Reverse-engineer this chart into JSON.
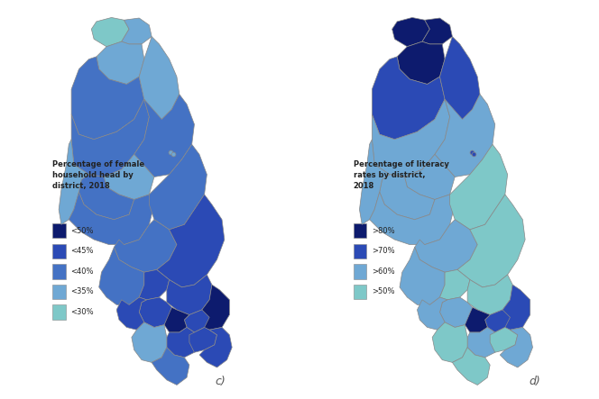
{
  "title_left": "Percentage of female\nhousehold head by\ndistrict, 2018",
  "title_right": "Percentage of literacy\nrates by district,\n2018",
  "label_c": "c)",
  "label_d": "d)",
  "legend_left": {
    "labels": [
      "<50%",
      "<45%",
      "<40%",
      "<35%",
      "<30%"
    ],
    "colors": [
      "#0d1b6e",
      "#2b4ab5",
      "#4472c4",
      "#6fa8d4",
      "#7ec8c8"
    ]
  },
  "legend_right": {
    "labels": [
      ">80%",
      ">70%",
      ">60%",
      ">50%"
    ],
    "colors": [
      "#0d1b6e",
      "#2b4ab5",
      "#6fa8d4",
      "#7ec8c8"
    ]
  },
  "female_head_colors": {
    "Chitipa": "#7ec8c8",
    "Karonga": "#6fa8d4",
    "Nkhata Bay": "#6fa8d4",
    "Rumphi": "#6fa8d4",
    "Mzimba": "#4472c4",
    "Likoma": "#6fa8d4",
    "Kasungu": "#4472c4",
    "Nkhotakota": "#4472c4",
    "Ntchisi": "#6fa8d4",
    "Dowa": "#4472c4",
    "Mchinji": "#6fa8d4",
    "Lilongwe": "#4472c4",
    "Dedza": "#4472c4",
    "Ntcheu": "#4472c4",
    "Salima": "#4472c4",
    "Mangochi": "#2b4ab5",
    "Machinga": "#2b4ab5",
    "Zomba": "#0d1b6e",
    "Chiradzulu": "#2b4ab5",
    "Blantyre": "#0d1b6e",
    "Mwanza": "#2b4ab5",
    "Thyolo": "#2b4ab5",
    "Mulanje": "#2b4ab5",
    "Phalombe": "#2b4ab5",
    "Chikwawa": "#6fa8d4",
    "Nsanje": "#4472c4",
    "Balaka": "#2b4ab5",
    "Neno": "#2b4ab5"
  },
  "literacy_colors": {
    "Chitipa": "#0d1b6e",
    "Karonga": "#0d1b6e",
    "Nkhata Bay": "#2b4ab5",
    "Rumphi": "#0d1b6e",
    "Mzimba": "#2b4ab5",
    "Likoma": "#2b4ab5",
    "Kasungu": "#6fa8d4",
    "Nkhotakota": "#6fa8d4",
    "Ntchisi": "#6fa8d4",
    "Dowa": "#6fa8d4",
    "Mchinji": "#6fa8d4",
    "Lilongwe": "#6fa8d4",
    "Dedza": "#6fa8d4",
    "Ntcheu": "#6fa8d4",
    "Salima": "#7ec8c8",
    "Mangochi": "#7ec8c8",
    "Machinga": "#7ec8c8",
    "Zomba": "#2b4ab5",
    "Chiradzulu": "#2b4ab5",
    "Blantyre": "#0d1b6e",
    "Mwanza": "#6fa8d4",
    "Thyolo": "#6fa8d4",
    "Mulanje": "#6fa8d4",
    "Phalombe": "#7ec8c8",
    "Chikwawa": "#7ec8c8",
    "Nsanje": "#7ec8c8",
    "Balaka": "#7ec8c8",
    "Neno": "#6fa8d4"
  },
  "background_color": "#ffffff",
  "map_edge_color": "#888888",
  "figsize": [
    6.64,
    4.43
  ],
  "dpi": 100
}
